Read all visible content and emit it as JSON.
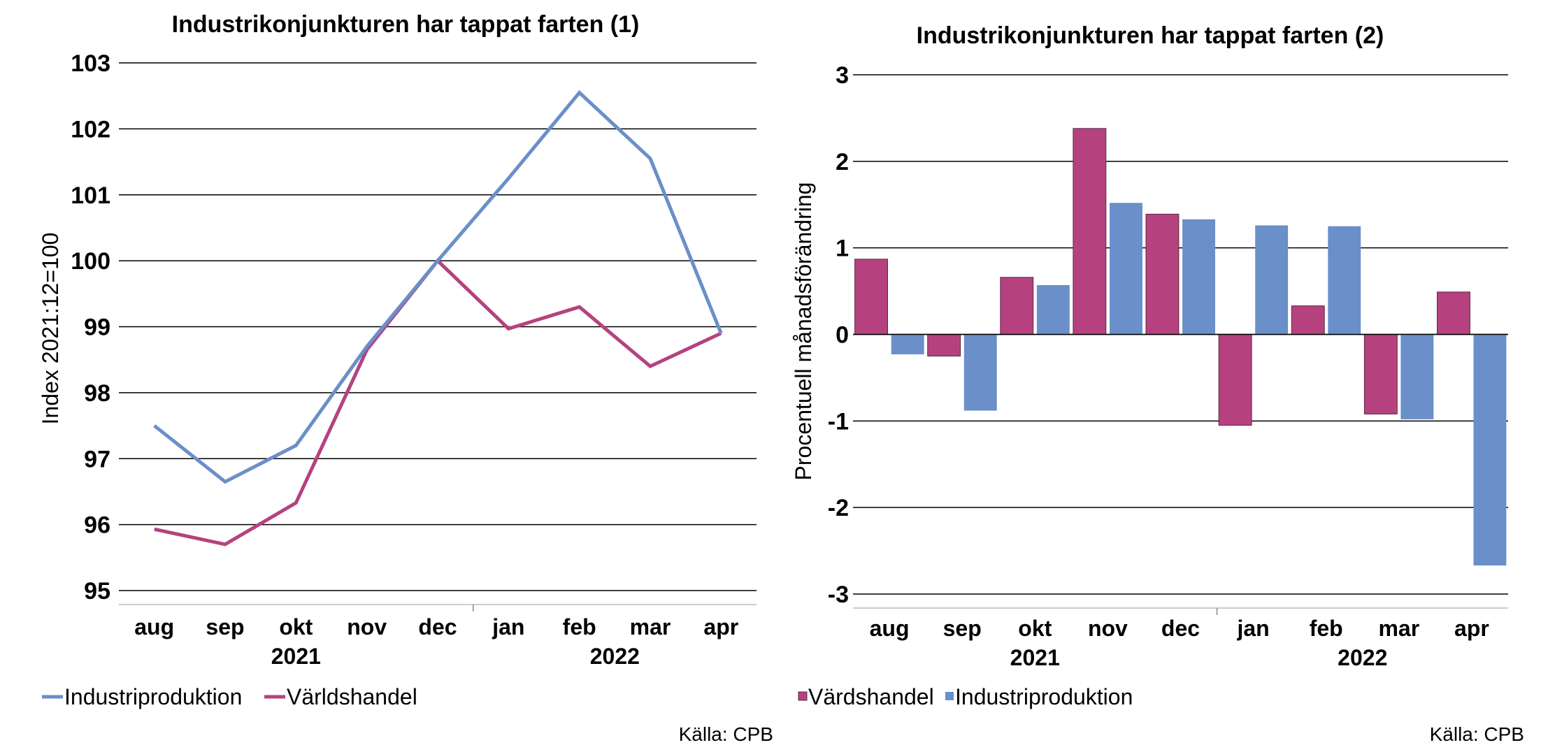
{
  "colors": {
    "industri": "#6a8fc9",
    "varld": "#b5427f",
    "grid": "#000000",
    "bar_stroke": "#5a2a45"
  },
  "chart_data": [
    {
      "type": "line",
      "title": "Industrikonjunkturen har tappat farten (1)",
      "ylabel": "Index 2021:12=100",
      "xlabel": "",
      "categories": [
        "aug",
        "sep",
        "okt",
        "nov",
        "dec",
        "jan",
        "feb",
        "mar",
        "apr"
      ],
      "years": [
        "2021",
        "2022"
      ],
      "ylim": [
        95,
        103
      ],
      "yticks": [
        "95",
        "96",
        "97",
        "98",
        "99",
        "100",
        "101",
        "102",
        "103"
      ],
      "grid": true,
      "legend_position": "bottom-left",
      "series": [
        {
          "name": "Industriproduktion",
          "color": "#6a8fc9",
          "values": [
            97.5,
            96.65,
            97.2,
            98.7,
            100.0,
            101.25,
            102.55,
            101.55,
            98.9
          ]
        },
        {
          "name": "Världshandel",
          "color": "#b5427f",
          "values": [
            95.93,
            95.7,
            96.33,
            98.65,
            100.0,
            98.97,
            99.3,
            98.4,
            98.9
          ]
        }
      ],
      "source": "Källa: CPB"
    },
    {
      "type": "bar",
      "title": "Industrikonjunkturen har tappat farten (2)",
      "ylabel": "Procentuell månadsförändring",
      "xlabel": "",
      "categories": [
        "aug",
        "sep",
        "okt",
        "nov",
        "dec",
        "jan",
        "feb",
        "mar",
        "apr"
      ],
      "years": [
        "2021",
        "2022"
      ],
      "ylim": [
        -3,
        3
      ],
      "yticks": [
        "-3",
        "-2",
        "-1",
        "0",
        "1",
        "2",
        "3"
      ],
      "grid": true,
      "legend_position": "bottom-left",
      "series": [
        {
          "name": "Värdshandel",
          "color": "#b5427f",
          "values": [
            0.87,
            -0.25,
            0.66,
            2.38,
            1.39,
            -1.05,
            0.33,
            -0.92,
            0.49
          ]
        },
        {
          "name": "Industriproduktion",
          "color": "#6a8fc9",
          "values": [
            -0.23,
            -0.88,
            0.57,
            1.52,
            1.33,
            1.26,
            1.25,
            -0.98,
            -2.67
          ]
        }
      ],
      "source": "Källa: CPB"
    }
  ]
}
